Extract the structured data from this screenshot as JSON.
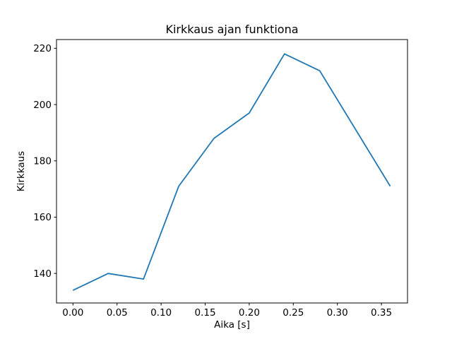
{
  "figure": {
    "background": "#ffffff",
    "text_color": "#000000"
  },
  "chart_data": {
    "type": "line",
    "title": "Kirkkaus ajan funktiona",
    "xlabel": "Aika [s]",
    "ylabel": "Kirkkaus",
    "x": [
      0.0,
      0.04,
      0.08,
      0.12,
      0.16,
      0.2,
      0.24,
      0.28,
      0.36
    ],
    "y": [
      134,
      140,
      138,
      171,
      188,
      197,
      218,
      212,
      171
    ],
    "x_tick_labels": [
      "0.00",
      "0.05",
      "0.10",
      "0.15",
      "0.20",
      "0.25",
      "0.30",
      "0.35"
    ],
    "x_tick_values": [
      0.0,
      0.05,
      0.1,
      0.15,
      0.2,
      0.25,
      0.3,
      0.35
    ],
    "y_tick_labels": [
      "140",
      "160",
      "180",
      "200",
      "220"
    ],
    "y_tick_values": [
      140,
      160,
      180,
      200,
      220
    ],
    "xlim": [
      -0.0187,
      0.3796
    ],
    "ylim": [
      129.5,
      223.1
    ],
    "line_color": "#1f77b4",
    "grid": false,
    "legend": "none"
  }
}
